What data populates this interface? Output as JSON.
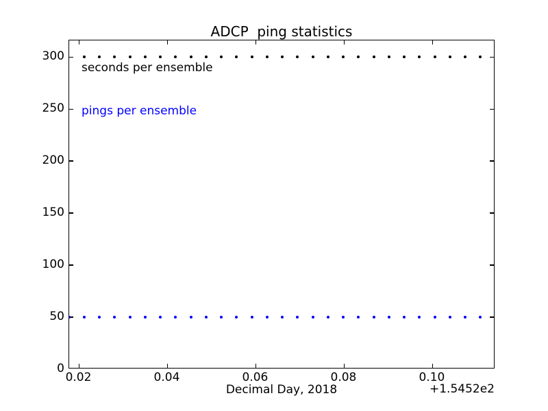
{
  "figure": {
    "background": "#ffffff",
    "foreground": "#000000"
  },
  "annotations": [
    {
      "text": "seconds per ensemble",
      "color": "#000000"
    },
    {
      "text": "pings per ensemble",
      "color": "#0000ff"
    }
  ],
  "chart_data": {
    "type": "scatter",
    "title": "ADCP  ping statistics",
    "xlabel": "Decimal Day, 2018",
    "x_offset_label": "+1.5452e2",
    "ylabel": "",
    "grid": false,
    "legend": "in-plot text labels, upper left",
    "xlim": [
      0.01775,
      0.1142
    ],
    "ylim": [
      0,
      316
    ],
    "xticks": [
      0.02,
      0.04,
      0.06,
      0.08,
      0.1
    ],
    "xtick_labels": [
      "0.02",
      "0.04",
      "0.06",
      "0.08",
      "0.10"
    ],
    "yticks": [
      0,
      50,
      100,
      150,
      200,
      250,
      300
    ],
    "ytick_labels": [
      "0",
      "50",
      "100",
      "150",
      "200",
      "250",
      "300"
    ],
    "series": [
      {
        "name": "seconds per ensemble",
        "color": "#000000",
        "marker": "dot",
        "y": 300,
        "x": [
          0.0211,
          0.0246,
          0.028,
          0.0315,
          0.0349,
          0.0384,
          0.0418,
          0.0453,
          0.0487,
          0.0522,
          0.0556,
          0.0591,
          0.0625,
          0.066,
          0.0694,
          0.0729,
          0.0763,
          0.0798,
          0.0832,
          0.0867,
          0.0901,
          0.0936,
          0.097,
          0.1005,
          0.1039,
          0.1074,
          0.1108
        ]
      },
      {
        "name": "pings per ensemble",
        "color": "#0000ff",
        "marker": "dot",
        "y": 50,
        "x": [
          0.0177,
          0.0211,
          0.0246,
          0.028,
          0.0315,
          0.0349,
          0.0384,
          0.0418,
          0.0453,
          0.0487,
          0.0522,
          0.0556,
          0.0591,
          0.0625,
          0.066,
          0.0694,
          0.0729,
          0.0763,
          0.0798,
          0.0832,
          0.0867,
          0.0901,
          0.0936,
          0.097,
          0.1005,
          0.1039,
          0.1074,
          0.1108
        ]
      }
    ]
  }
}
